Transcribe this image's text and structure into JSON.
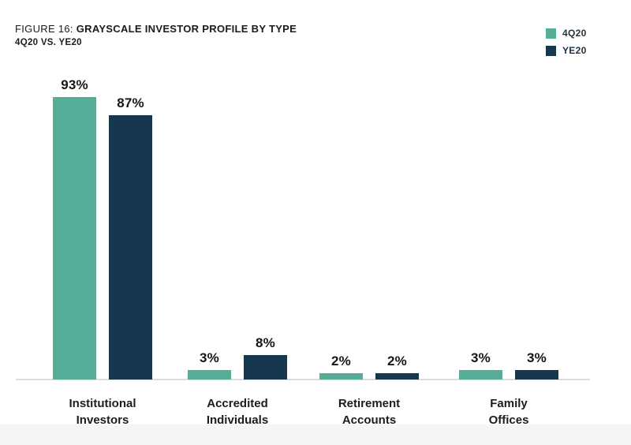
{
  "figure": {
    "title_prefix": "FIGURE 16: ",
    "title_main": "GRAYSCALE INVESTOR PROFILE BY TYPE",
    "subtitle": "4Q20 VS. YE20"
  },
  "legend": {
    "position": "top-right",
    "items": [
      {
        "label": "4Q20",
        "color": "#56AE99"
      },
      {
        "label": "YE20",
        "color": "#16384E"
      }
    ]
  },
  "colors": {
    "series_4q20": "#56AE99",
    "series_ye20": "#16384E",
    "axis_line": "#dcdcdc",
    "text": "#1b1b1b",
    "background": "#ffffff"
  },
  "chart_data": {
    "type": "bar",
    "title": "FIGURE 16: GRAYSCALE INVESTOR PROFILE BY TYPE",
    "subtitle": "4Q20 VS. YE20",
    "categories": [
      "Institutional Investors",
      "Accredited Individuals",
      "Retirement Accounts",
      "Family Offices"
    ],
    "series": [
      {
        "name": "4Q20",
        "color": "#56AE99",
        "values": [
          93,
          3,
          2,
          3
        ]
      },
      {
        "name": "YE20",
        "color": "#16384E",
        "values": [
          87,
          8,
          2,
          3
        ]
      }
    ],
    "value_labels": [
      [
        "93%",
        "3%",
        "2%",
        "3%"
      ],
      [
        "87%",
        "8%",
        "2%",
        "3%"
      ]
    ],
    "value_suffix": "%",
    "xlabel": "",
    "ylabel": "",
    "ylim": [
      0,
      100
    ],
    "grid": false,
    "y_axis_visible": false,
    "legend_position": "top-right"
  }
}
